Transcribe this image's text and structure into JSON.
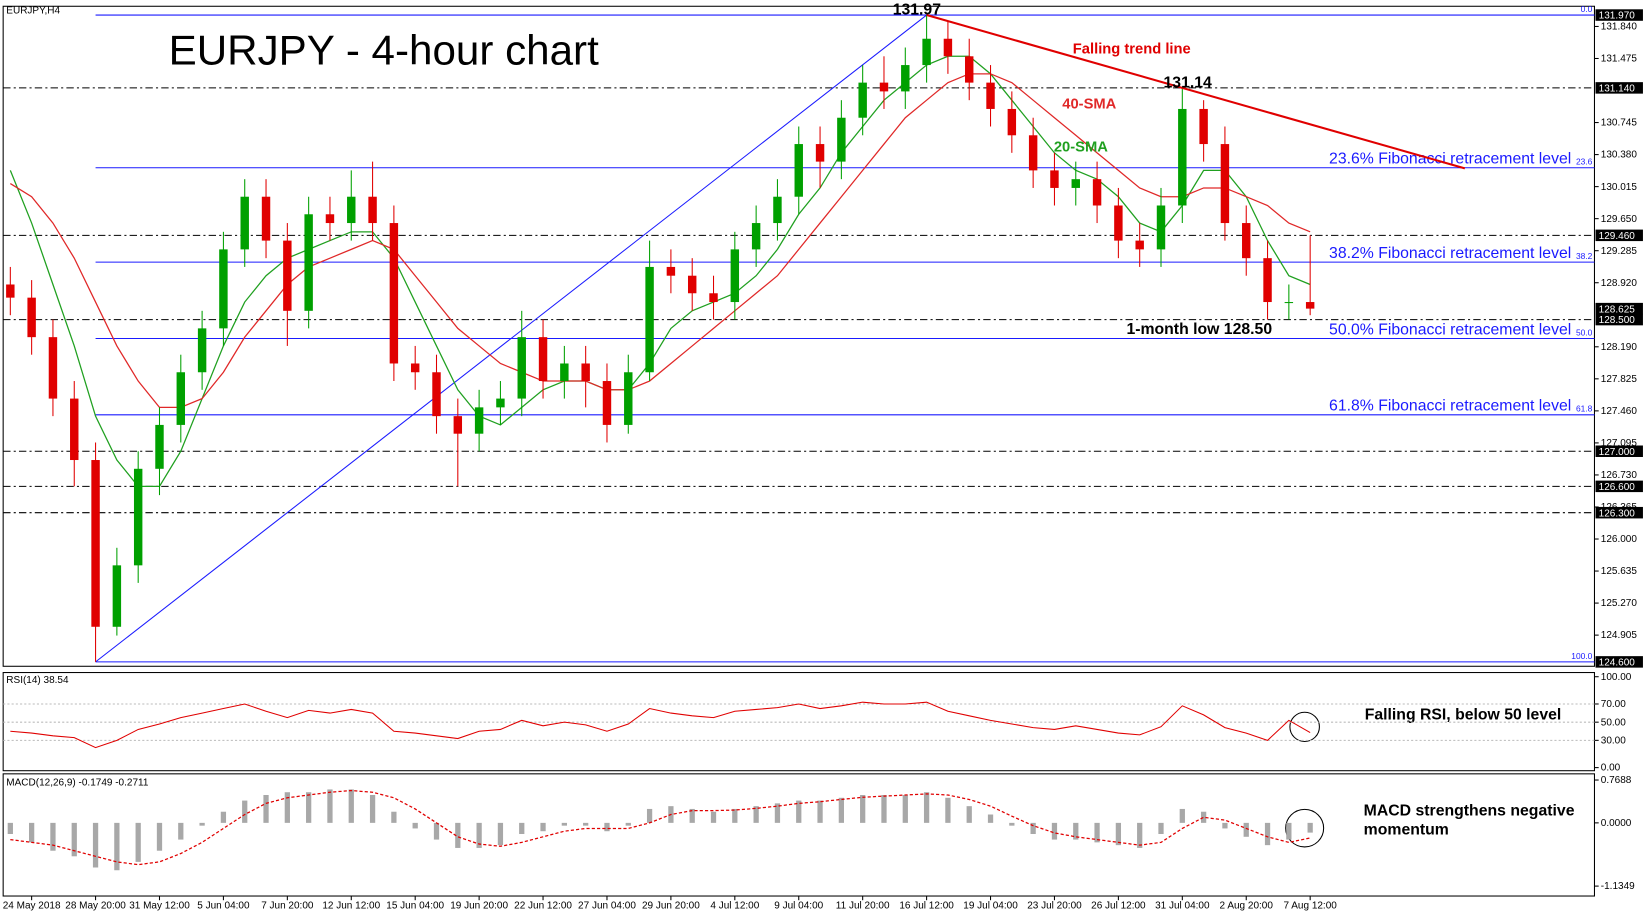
{
  "chart_data": [
    {
      "type": "candlestick",
      "header": "EURJPY,H4",
      "title": "EURJPY - 4-hour chart",
      "categories": [
        null,
        "24 May 2018",
        null,
        null,
        "28 May 20:00",
        null,
        null,
        "31 May 12:00",
        null,
        null,
        "5 Jun 04:00",
        null,
        null,
        "7 Jun 20:00",
        null,
        null,
        "12 Jun 12:00",
        null,
        null,
        "15 Jun 04:00",
        null,
        null,
        "19 Jun 20:00",
        null,
        null,
        "22 Jun 12:00",
        null,
        null,
        "27 Jun 04:00",
        null,
        null,
        "29 Jun 20:00",
        null,
        null,
        "4 Jul 12:00",
        null,
        null,
        "9 Jul 04:00",
        null,
        null,
        "11 Jul 20:00",
        null,
        null,
        "16 Jul 12:00",
        null,
        null,
        "19 Jul 04:00",
        null,
        null,
        "23 Jul 20:00",
        null,
        null,
        "26 Jul 12:00",
        null,
        null,
        "31 Jul 04:00",
        null,
        null,
        "2 Aug 20:00",
        null,
        null,
        "7 Aug 12:00"
      ],
      "open": [
        128.9,
        128.75,
        128.3,
        127.6,
        126.9,
        125.0,
        125.7,
        126.8,
        127.3,
        127.9,
        128.4,
        129.3,
        129.9,
        129.4,
        128.6,
        129.7,
        129.6,
        129.9,
        129.6,
        128.0,
        127.9,
        127.4,
        127.2,
        127.5,
        127.6,
        128.3,
        127.8,
        128.0,
        127.8,
        127.3,
        127.9,
        129.1,
        129.0,
        128.8,
        128.7,
        129.3,
        129.6,
        129.9,
        130.5,
        130.3,
        130.8,
        131.2,
        131.1,
        131.4,
        131.7,
        131.5,
        131.2,
        130.9,
        130.6,
        130.2,
        130.0,
        130.1,
        129.8,
        129.4,
        129.3,
        129.8,
        130.9,
        130.5,
        129.6,
        129.2,
        128.7,
        128.7
      ],
      "high": [
        129.1,
        128.95,
        128.5,
        127.8,
        127.1,
        125.9,
        127.0,
        127.5,
        128.1,
        128.6,
        129.5,
        130.1,
        130.1,
        129.6,
        129.9,
        129.9,
        130.2,
        130.3,
        129.8,
        128.2,
        128.1,
        127.6,
        127.7,
        127.8,
        128.6,
        128.5,
        128.2,
        128.2,
        128.0,
        128.1,
        129.4,
        129.3,
        129.2,
        129.0,
        129.5,
        129.8,
        130.1,
        130.7,
        130.7,
        131.0,
        131.4,
        131.5,
        131.6,
        131.97,
        131.9,
        131.7,
        131.4,
        131.1,
        130.8,
        130.4,
        130.3,
        130.3,
        130.0,
        129.6,
        130.0,
        131.14,
        131.0,
        130.7,
        129.8,
        129.4,
        128.9,
        129.46
      ],
      "low": [
        128.55,
        128.1,
        127.4,
        126.6,
        124.6,
        124.9,
        125.5,
        126.5,
        127.1,
        127.7,
        128.2,
        129.1,
        129.2,
        128.2,
        128.4,
        129.4,
        129.4,
        129.4,
        127.8,
        127.7,
        127.2,
        126.6,
        127.0,
        127.3,
        127.4,
        127.6,
        127.6,
        127.5,
        127.1,
        127.2,
        127.8,
        128.8,
        128.6,
        128.5,
        128.5,
        129.1,
        129.4,
        129.7,
        130.0,
        130.1,
        130.6,
        130.9,
        130.9,
        131.2,
        131.3,
        131.0,
        130.7,
        130.4,
        130.0,
        129.8,
        129.8,
        129.6,
        129.2,
        129.1,
        129.1,
        129.6,
        130.3,
        129.4,
        129.0,
        128.5,
        128.5,
        128.55
      ],
      "close": [
        128.75,
        128.3,
        127.6,
        126.9,
        125.0,
        125.7,
        126.8,
        127.3,
        127.9,
        128.4,
        129.3,
        129.9,
        129.4,
        128.6,
        129.7,
        129.6,
        129.9,
        129.6,
        128.0,
        127.9,
        127.4,
        127.2,
        127.5,
        127.6,
        128.3,
        127.8,
        128.0,
        127.8,
        127.3,
        127.9,
        129.1,
        129.0,
        128.8,
        128.7,
        129.3,
        129.6,
        129.9,
        130.5,
        130.3,
        130.8,
        131.2,
        131.1,
        131.4,
        131.7,
        131.5,
        131.2,
        130.9,
        130.6,
        130.2,
        130.0,
        130.1,
        129.8,
        129.4,
        129.3,
        129.8,
        130.9,
        130.5,
        129.6,
        129.2,
        128.7,
        128.7,
        128.625
      ],
      "up_color": "#00a000",
      "down_color": "#e00000",
      "moving_averages": [
        {
          "name": "20-SMA",
          "color": "#20a020",
          "values": [
            130.2,
            129.6,
            128.9,
            128.2,
            127.4,
            126.9,
            126.6,
            126.6,
            127.0,
            127.6,
            128.2,
            128.7,
            129.0,
            129.2,
            129.3,
            129.4,
            129.5,
            129.5,
            129.2,
            128.7,
            128.2,
            127.7,
            127.4,
            127.3,
            127.5,
            127.7,
            127.8,
            127.8,
            127.7,
            127.7,
            128.0,
            128.4,
            128.6,
            128.7,
            128.8,
            129.0,
            129.3,
            129.7,
            130.0,
            130.4,
            130.7,
            131.0,
            131.2,
            131.4,
            131.5,
            131.5,
            131.3,
            131.0,
            130.7,
            130.4,
            130.2,
            130.1,
            129.9,
            129.6,
            129.5,
            129.8,
            130.2,
            130.2,
            129.9,
            129.4,
            129.0,
            128.9
          ]
        },
        {
          "name": "40-SMA",
          "color": "#e02828",
          "values": [
            130.05,
            129.9,
            129.6,
            129.2,
            128.7,
            128.2,
            127.8,
            127.5,
            127.5,
            127.6,
            127.9,
            128.3,
            128.6,
            128.9,
            129.1,
            129.2,
            129.3,
            129.4,
            129.3,
            129.0,
            128.7,
            128.4,
            128.2,
            128.0,
            127.9,
            127.8,
            127.8,
            127.8,
            127.7,
            127.7,
            127.8,
            128.0,
            128.2,
            128.4,
            128.6,
            128.8,
            129.0,
            129.3,
            129.6,
            129.9,
            130.2,
            130.5,
            130.8,
            131.0,
            131.2,
            131.3,
            131.3,
            131.2,
            131.0,
            130.8,
            130.6,
            130.4,
            130.2,
            130.0,
            129.9,
            129.9,
            130.0,
            130.0,
            129.9,
            129.8,
            129.6,
            129.5
          ]
        }
      ],
      "ylim": [
        124.55,
        132.07
      ],
      "yticks": [
        {
          "value": 131.84,
          "label": "131.840"
        },
        {
          "value": 131.475,
          "label": "131.475"
        },
        {
          "value": 130.745,
          "label": "130.745"
        },
        {
          "value": 130.38,
          "label": "130.380"
        },
        {
          "value": 130.015,
          "label": "130.015"
        },
        {
          "value": 129.65,
          "label": "129.650"
        },
        {
          "value": 129.285,
          "label": "129.285"
        },
        {
          "value": 128.92,
          "label": "128.920"
        },
        {
          "value": 128.19,
          "label": "128.190"
        },
        {
          "value": 127.825,
          "label": "127.825"
        },
        {
          "value": 127.46,
          "label": "127.460"
        },
        {
          "value": 127.095,
          "label": "127.095"
        },
        {
          "value": 126.73,
          "label": "126.730"
        },
        {
          "value": 126.365,
          "label": "126.365"
        },
        {
          "value": 126.0,
          "label": "126.000"
        },
        {
          "value": 125.635,
          "label": "125.635"
        },
        {
          "value": 125.27,
          "label": "125.270"
        },
        {
          "value": 124.905,
          "label": "124.905"
        }
      ],
      "levels": [
        {
          "value": 131.14,
          "label": "131.140"
        },
        {
          "value": 129.46,
          "label": "129.460"
        },
        {
          "value": 128.5,
          "label": "128.500"
        },
        {
          "value": 127.0,
          "label": "127.000"
        },
        {
          "value": 126.6,
          "label": "126.600"
        },
        {
          "value": 126.3,
          "label": "126.300"
        }
      ],
      "current_price": {
        "value": 128.625,
        "label": "128.625"
      },
      "fibonacci_color": "#1a1aff",
      "fibonacci": [
        {
          "ratio": "0.0",
          "value": 131.97,
          "price_label": "131.970"
        },
        {
          "ratio": 23.6,
          "value": 130.23,
          "label": "23.6% Fibonacci retracement level"
        },
        {
          "ratio": 38.2,
          "value": 129.155,
          "label": "38.2% Fibonacci retracement level"
        },
        {
          "ratio": "50.0",
          "value": 128.285,
          "label": "50.0% Fibonacci retracement level"
        },
        {
          "ratio": 61.8,
          "value": 127.415,
          "label": "61.8% Fibonacci retracement level"
        },
        {
          "ratio": "100.0",
          "value": 124.6,
          "price_label": "124.600"
        }
      ],
      "trend_line": {
        "name": "Falling trend line",
        "color": "#e00000"
      },
      "annotations": [
        "131.97",
        "131.14",
        "1-month low 128.50"
      ]
    },
    {
      "type": "line",
      "header": "RSI(14) 38.54",
      "color": "#e00000",
      "values": [
        40,
        38,
        35,
        33,
        22,
        30,
        42,
        48,
        55,
        60,
        65,
        70,
        62,
        55,
        63,
        60,
        64,
        60,
        40,
        38,
        35,
        32,
        40,
        42,
        52,
        46,
        50,
        47,
        40,
        48,
        65,
        60,
        57,
        55,
        62,
        64,
        66,
        70,
        65,
        68,
        72,
        70,
        70,
        72,
        62,
        57,
        52,
        48,
        44,
        42,
        46,
        42,
        38,
        36,
        45,
        68,
        58,
        44,
        38,
        30,
        52,
        38.54
      ],
      "ylim": [
        -3.4,
        104.6
      ],
      "yticks": [
        {
          "value": 100,
          "label": "100.00"
        },
        {
          "value": 70,
          "label": "70.00"
        },
        {
          "value": 50,
          "label": "50.00"
        },
        {
          "value": 30,
          "label": "30.00"
        },
        {
          "value": 0,
          "label": "0.00"
        }
      ],
      "levels": [
        70,
        50,
        30
      ],
      "annotation": "Falling RSI, below 50 level"
    },
    {
      "type": "macd",
      "header": "MACD(12,26,9) -0.1749 -0.2711",
      "histogram_color": "#a8a8a8",
      "signal_color": "#e00000",
      "histogram": [
        -0.2,
        -0.35,
        -0.5,
        -0.6,
        -0.8,
        -0.85,
        -0.7,
        -0.5,
        -0.3,
        -0.05,
        0.2,
        0.4,
        0.5,
        0.55,
        0.55,
        0.6,
        0.6,
        0.5,
        0.2,
        -0.1,
        -0.3,
        -0.45,
        -0.45,
        -0.4,
        -0.2,
        -0.15,
        -0.05,
        -0.05,
        -0.15,
        -0.05,
        0.25,
        0.3,
        0.25,
        0.2,
        0.25,
        0.3,
        0.35,
        0.4,
        0.4,
        0.45,
        0.5,
        0.5,
        0.5,
        0.55,
        0.45,
        0.3,
        0.15,
        -0.05,
        -0.2,
        -0.3,
        -0.3,
        -0.35,
        -0.4,
        -0.45,
        -0.2,
        0.25,
        0.2,
        -0.1,
        -0.25,
        -0.4,
        -0.3,
        -0.1749
      ],
      "signal": [
        -0.3,
        -0.35,
        -0.4,
        -0.5,
        -0.6,
        -0.7,
        -0.75,
        -0.7,
        -0.55,
        -0.35,
        -0.1,
        0.15,
        0.35,
        0.45,
        0.5,
        0.55,
        0.58,
        0.55,
        0.45,
        0.25,
        0.0,
        -0.25,
        -0.38,
        -0.42,
        -0.35,
        -0.25,
        -0.15,
        -0.1,
        -0.1,
        -0.1,
        0.0,
        0.15,
        0.22,
        0.22,
        0.23,
        0.26,
        0.3,
        0.35,
        0.38,
        0.42,
        0.46,
        0.48,
        0.5,
        0.52,
        0.5,
        0.42,
        0.3,
        0.12,
        -0.05,
        -0.18,
        -0.25,
        -0.3,
        -0.35,
        -0.4,
        -0.35,
        -0.1,
        0.1,
        0.05,
        -0.1,
        -0.25,
        -0.35,
        -0.2711
      ],
      "ylim": [
        -1.313,
        0.88
      ],
      "yticks": [
        0.7688,
        {
          "value": 0,
          "label": "0.0000"
        },
        -1.1349
      ],
      "annotation": "MACD strengthens negative momentum"
    }
  ]
}
